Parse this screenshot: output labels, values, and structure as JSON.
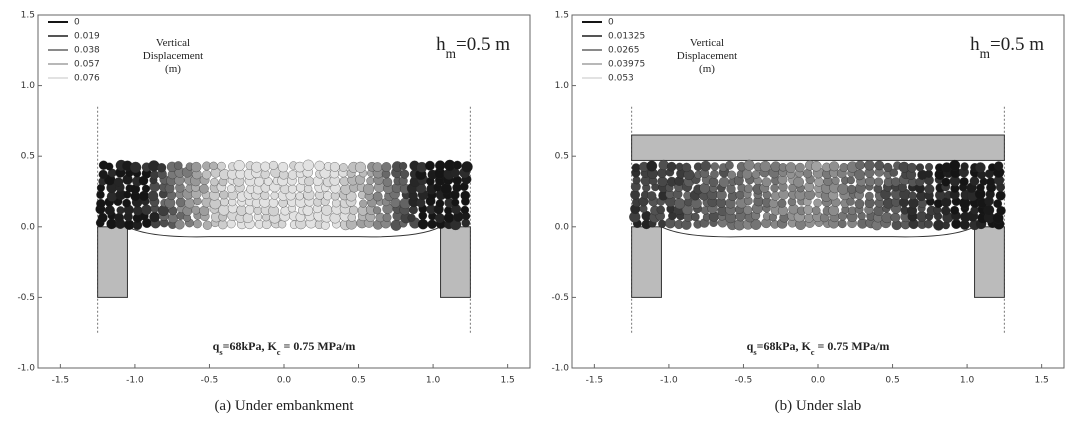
{
  "chart_data": [
    {
      "type": "particle-field",
      "caption": "(a) Under embankment",
      "annotation": [
        {
          "text": "h"
        },
        {
          "sub": "m"
        },
        {
          "text": "=0.5 m"
        }
      ],
      "load_label": [
        {
          "text": "q"
        },
        {
          "sub": "s"
        },
        {
          "text": "=68kPa, K"
        },
        {
          "sub": "c"
        },
        {
          "text": " = 0.75 MPa/m"
        }
      ],
      "legend_title": [
        "Vertical",
        "Displacement",
        "(m)"
      ],
      "series": [
        {
          "name": "0",
          "color": "#151515"
        },
        {
          "name": "0.019",
          "color": "#555555"
        },
        {
          "name": "0.038",
          "color": "#8a8a8a"
        },
        {
          "name": "0.057",
          "color": "#b8b8b8"
        },
        {
          "name": "0.076",
          "color": "#e2e2e2"
        }
      ],
      "slab": false,
      "xlim": [
        -1.65,
        1.65
      ],
      "ylim": [
        -1.0,
        1.5
      ],
      "xticks": [
        -1.5,
        {
          "value": -1.0,
          "label": "-1.0"
        },
        -0.5,
        {
          "value": 0.0,
          "label": "0.0"
        },
        0.5,
        {
          "value": 1.0,
          "label": "1.0"
        },
        1.5
      ],
      "yticks": [
        {
          "value": -1.0,
          "label": "-1.0"
        },
        -0.5,
        {
          "value": 0.0,
          "label": "0.0"
        },
        0.5,
        {
          "value": 1.0,
          "label": "1.0"
        },
        1.5
      ]
    },
    {
      "type": "particle-field",
      "caption": "(b) Under slab",
      "annotation": [
        {
          "text": "h"
        },
        {
          "sub": "m"
        },
        {
          "text": "=0.5 m"
        }
      ],
      "load_label": [
        {
          "text": "q"
        },
        {
          "sub": "s"
        },
        {
          "text": "=68kPa, K"
        },
        {
          "sub": "c"
        },
        {
          "text": " = 0.75 MPa/m"
        }
      ],
      "legend_title": [
        "Vertical",
        "Displacement",
        "(m)"
      ],
      "series": [
        {
          "name": "0",
          "color": "#151515"
        },
        {
          "name": "0.01325",
          "color": "#555555"
        },
        {
          "name": "0.0265",
          "color": "#8a8a8a"
        },
        {
          "name": "0.03975",
          "color": "#b8b8b8"
        },
        {
          "name": "0.053",
          "color": "#e2e2e2"
        }
      ],
      "slab": true,
      "xlim": [
        -1.65,
        1.65
      ],
      "ylim": [
        -1.0,
        1.5
      ],
      "xticks": [
        -1.5,
        {
          "value": -1.0,
          "label": "-1.0"
        },
        -0.5,
        {
          "value": 0.0,
          "label": "0.0"
        },
        0.5,
        {
          "value": 1.0,
          "label": "1.0"
        },
        1.5
      ],
      "yticks": [
        {
          "value": -1.0,
          "label": "-1.0"
        },
        -0.5,
        {
          "value": 0.0,
          "label": "0.0"
        },
        0.5,
        {
          "value": 1.0,
          "label": "1.0"
        },
        1.5
      ]
    }
  ]
}
